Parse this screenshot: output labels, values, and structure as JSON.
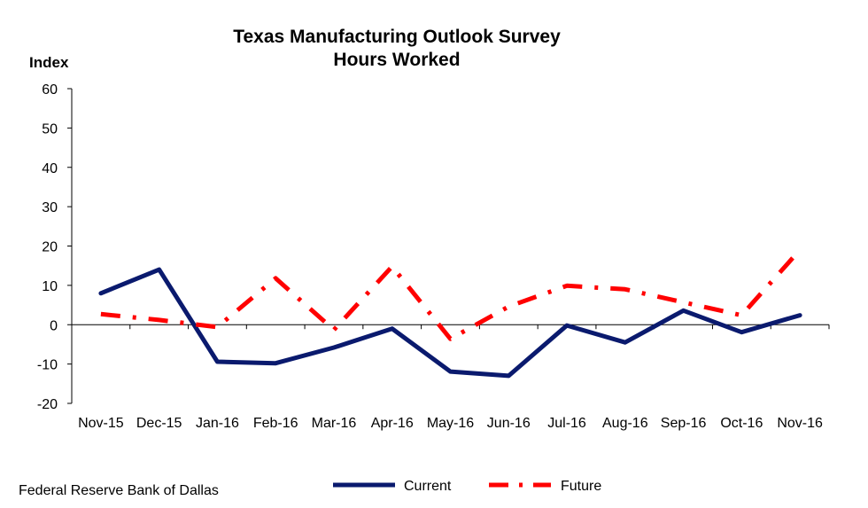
{
  "source": "Federal Reserve Bank of Dallas",
  "chart_data": {
    "type": "line",
    "title": "Texas Manufacturing Outlook Survey",
    "subtitle": "Hours Worked",
    "xlabel": "",
    "ylabel": "Index",
    "ylim": [
      -20,
      60
    ],
    "yticks": [
      -20,
      -10,
      0,
      10,
      20,
      30,
      40,
      50,
      60
    ],
    "grid": false,
    "legend_position": "bottom",
    "categories": [
      "Nov-15",
      "Dec-15",
      "Jan-16",
      "Feb-16",
      "Mar-16",
      "Apr-16",
      "May-16",
      "Jun-16",
      "Jul-16",
      "Aug-16",
      "Sep-16",
      "Oct-16",
      "Nov-16"
    ],
    "series": [
      {
        "name": "Current",
        "color": "#0a1a6e",
        "style": "solid",
        "values": [
          8.0,
          14.0,
          -9.4,
          -9.8,
          -5.8,
          -1.0,
          -11.9,
          -13.0,
          -0.2,
          -4.5,
          3.6,
          -1.9,
          2.4
        ]
      },
      {
        "name": "Future",
        "color": "#ff0000",
        "style": "dash-dot",
        "values": [
          2.7,
          1.2,
          -0.6,
          11.8,
          -1.3,
          14.8,
          -3.6,
          4.6,
          9.9,
          9.0,
          5.7,
          2.4,
          19.0
        ]
      }
    ]
  }
}
